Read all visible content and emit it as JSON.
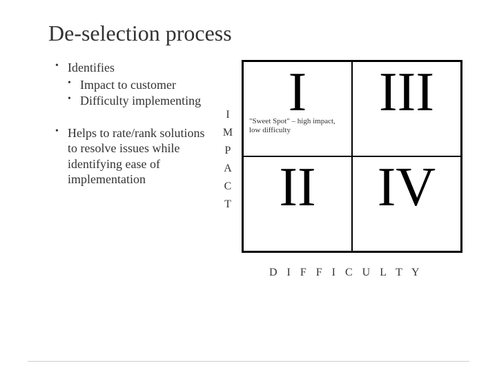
{
  "title": "De-selection process",
  "bullets": {
    "b1": {
      "label": "Identifies",
      "sub1": "Impact to customer",
      "sub2": "Difficulty implementing"
    },
    "b2": {
      "label": "Helps to rate/rank solutions to resolve issues while identifying ease of implementation"
    }
  },
  "y_axis": {
    "c1": "I",
    "c2": "M",
    "c3": "P",
    "c4": "A",
    "c5": "C",
    "c6": "T"
  },
  "x_axis_label": "D I F F I C U L T Y",
  "matrix": {
    "type": "quadrant",
    "border_color": "#000000",
    "background_color": "#ffffff",
    "cell_font_size": 80,
    "annotation_font_size": 11,
    "q1": {
      "roman": "I",
      "annotation": "\"Sweet Spot\" – high impact, low difficulty"
    },
    "q2": {
      "roman": "III",
      "annotation": ""
    },
    "q3": {
      "roman": "II",
      "annotation": ""
    },
    "q4": {
      "roman": "IV",
      "annotation": ""
    }
  },
  "colors": {
    "title_color": "#333333",
    "text_color": "#333333",
    "background": "#ffffff"
  }
}
